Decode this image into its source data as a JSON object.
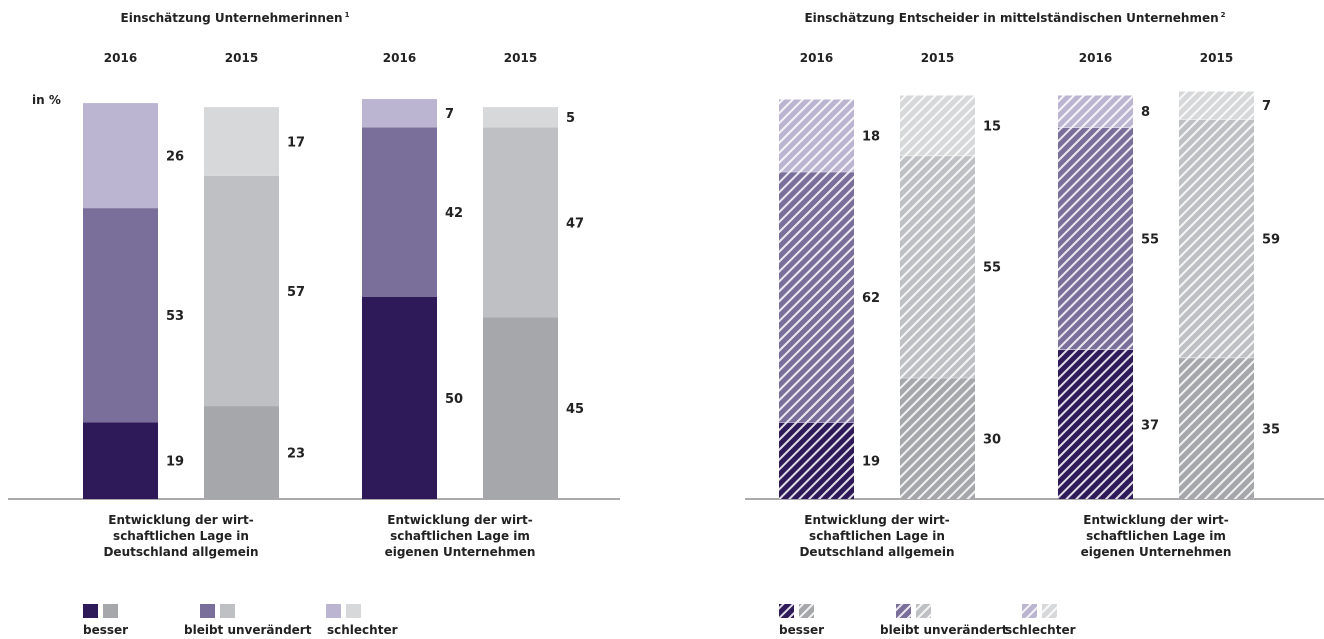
{
  "colors": {
    "besser_2016": "#2f1a59",
    "unveraendert_2016": "#7a6e9a",
    "schlechter_2016": "#bbb5d1",
    "besser_2015": "#a5a7aa",
    "unveraendert_2015": "#bfc0c3",
    "schlechter_2015": "#d7d8da",
    "axis": "#555555"
  },
  "chart_data": [
    {
      "type": "bar",
      "stacked": true,
      "title": "Einschätzung Unternehmerinnen",
      "title_sup": "1",
      "unit_label": "in %",
      "pattern": "solid",
      "stack_order": [
        "besser",
        "bleibt unverändert",
        "schlechter"
      ],
      "groups": [
        {
          "category": [
            "Entwicklung der wirt-",
            "schaftlichen Lage in",
            "Deutschland allgemein"
          ],
          "bars": [
            {
              "year": "2016",
              "values": [
                19,
                53,
                26
              ]
            },
            {
              "year": "2015",
              "values": [
                23,
                57,
                17
              ]
            }
          ]
        },
        {
          "category": [
            "Entwicklung der wirt-",
            "schaftlichen Lage im",
            "eigenen Unternehmen"
          ],
          "bars": [
            {
              "year": "2016",
              "values": [
                50,
                42,
                7
              ]
            },
            {
              "year": "2015",
              "values": [
                45,
                47,
                5
              ]
            }
          ]
        }
      ],
      "legend": {
        "entries": [
          "besser",
          "bleibt unverändert",
          "schlechter"
        ],
        "placement": "bottom-left"
      }
    },
    {
      "type": "bar",
      "stacked": true,
      "title": "Einschätzung Entscheider in mittelständischen Unternehmen",
      "title_sup": "2",
      "unit_label": "",
      "pattern": "hatched",
      "stack_order": [
        "besser",
        "bleibt unverändert",
        "schlechter"
      ],
      "groups": [
        {
          "category": [
            "Entwicklung der wirt-",
            "schaftlichen Lage in",
            "Deutschland allgemein"
          ],
          "bars": [
            {
              "year": "2016",
              "values": [
                19,
                62,
                18
              ]
            },
            {
              "year": "2015",
              "values": [
                30,
                55,
                15
              ]
            }
          ]
        },
        {
          "category": [
            "Entwicklung der wirt-",
            "schaftlichen Lage im",
            "eigenen Unternehmen"
          ],
          "bars": [
            {
              "year": "2016",
              "values": [
                37,
                55,
                8
              ]
            },
            {
              "year": "2015",
              "values": [
                35,
                59,
                7
              ]
            }
          ]
        }
      ],
      "legend": {
        "entries": [
          "besser",
          "bleibt unverändert",
          "schlechter"
        ],
        "placement": "bottom-right"
      }
    }
  ]
}
